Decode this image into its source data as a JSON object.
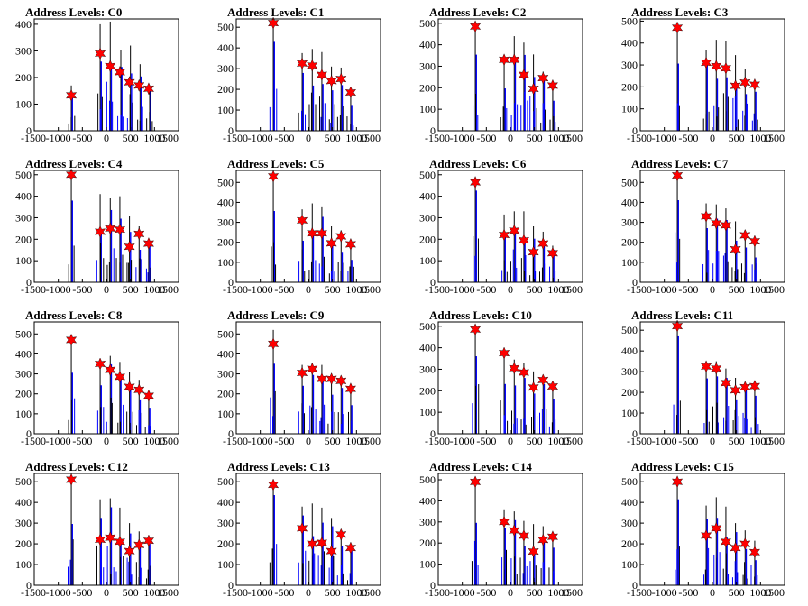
{
  "chart_data": {
    "type": "histogram",
    "layout": "4x4 grid",
    "colors": {
      "histogram_blue": "#0000ff",
      "histogram_black": "#000000",
      "marker_red": "#ff0000"
    },
    "xlim": [
      -1500,
      1500
    ],
    "xticks": [
      "-1500",
      "-1000",
      "-500",
      "0",
      "500",
      "1000",
      "1500"
    ],
    "panels": [
      {
        "title": "Address Levels: C0",
        "ylim": [
          0,
          420
        ],
        "yticks": [
          0,
          100,
          200,
          300,
          400
        ],
        "peaks_x": [
          -730,
          -130,
          80,
          300,
          500,
          700,
          900
        ],
        "peaks_y": [
          170,
          400,
          410,
          305,
          320,
          250,
          170
        ],
        "markers_x": [
          -730,
          -130,
          80,
          280,
          480,
          680,
          880
        ],
        "markers_y": [
          133,
          290,
          243,
          220,
          182,
          170,
          158
        ]
      },
      {
        "title": "Address Levels: C1",
        "ylim": [
          0,
          540
        ],
        "yticks": [
          0,
          100,
          200,
          300,
          400,
          500
        ],
        "peaks_x": [
          -730,
          -130,
          80,
          280,
          480,
          680,
          880
        ],
        "peaks_y": [
          530,
          375,
          395,
          380,
          310,
          305,
          205
        ],
        "markers_x": [
          -730,
          -130,
          80,
          280,
          480,
          680,
          880
        ],
        "markers_y": [
          520,
          325,
          315,
          270,
          240,
          250,
          185
        ]
      },
      {
        "title": "Address Levels: C2",
        "ylim": [
          0,
          520
        ],
        "yticks": [
          0,
          100,
          200,
          300,
          400,
          500
        ],
        "peaks_x": [
          -730,
          -130,
          80,
          280,
          480,
          680,
          880
        ],
        "peaks_y": [
          500,
          340,
          440,
          410,
          355,
          275,
          225
        ],
        "markers_x": [
          -730,
          -130,
          80,
          280,
          480,
          680,
          880
        ],
        "markers_y": [
          485,
          330,
          330,
          260,
          195,
          245,
          210
        ]
      },
      {
        "title": "Address Levels: C3",
        "ylim": [
          0,
          510
        ],
        "yticks": [
          0,
          100,
          200,
          300,
          400,
          500
        ],
        "peaks_x": [
          -730,
          -130,
          80,
          280,
          480,
          680,
          880
        ],
        "peaks_y": [
          485,
          370,
          415,
          410,
          345,
          280,
          215
        ],
        "markers_x": [
          -730,
          -130,
          80,
          280,
          480,
          680,
          880
        ],
        "markers_y": [
          470,
          310,
          295,
          285,
          205,
          220,
          210
        ]
      },
      {
        "title": "Address Levels: C4",
        "ylim": [
          0,
          520
        ],
        "yticks": [
          0,
          100,
          200,
          300,
          400,
          500
        ],
        "peaks_x": [
          -730,
          -130,
          80,
          280,
          480,
          680,
          880
        ],
        "peaks_y": [
          510,
          410,
          390,
          400,
          310,
          260,
          200
        ],
        "markers_x": [
          -730,
          -130,
          80,
          280,
          480,
          680,
          880
        ],
        "markers_y": [
          500,
          235,
          250,
          245,
          165,
          225,
          180
        ]
      },
      {
        "title": "Address Levels: C5",
        "ylim": [
          0,
          560
        ],
        "yticks": [
          0,
          100,
          200,
          300,
          400,
          500
        ],
        "peaks_x": [
          -730,
          -130,
          80,
          280,
          480,
          680,
          880
        ],
        "peaks_y": [
          545,
          365,
          395,
          380,
          280,
          260,
          200
        ],
        "markers_x": [
          -730,
          -130,
          80,
          280,
          480,
          680,
          880
        ],
        "markers_y": [
          530,
          310,
          245,
          245,
          195,
          230,
          190
        ]
      },
      {
        "title": "Address Levels: C6",
        "ylim": [
          0,
          520
        ],
        "yticks": [
          0,
          100,
          200,
          300,
          400,
          500
        ],
        "peaks_x": [
          -730,
          -130,
          80,
          280,
          480,
          680,
          880
        ],
        "peaks_y": [
          480,
          315,
          330,
          330,
          260,
          235,
          170
        ],
        "markers_x": [
          -730,
          -130,
          80,
          280,
          480,
          680,
          880
        ],
        "markers_y": [
          465,
          220,
          240,
          195,
          140,
          180,
          135
        ]
      },
      {
        "title": "Address Levels: C7",
        "ylim": [
          0,
          560
        ],
        "yticks": [
          0,
          100,
          200,
          300,
          400,
          500
        ],
        "peaks_x": [
          -730,
          -130,
          80,
          280,
          480,
          680,
          880
        ],
        "peaks_y": [
          545,
          395,
          390,
          370,
          305,
          260,
          215
        ],
        "markers_x": [
          -730,
          -130,
          80,
          280,
          480,
          680,
          880
        ],
        "markers_y": [
          535,
          330,
          295,
          285,
          165,
          235,
          205
        ]
      },
      {
        "title": "Address Levels: C8",
        "ylim": [
          0,
          560
        ],
        "yticks": [
          0,
          100,
          200,
          300,
          400,
          500
        ],
        "peaks_x": [
          -730,
          -130,
          80,
          280,
          480,
          680,
          880
        ],
        "peaks_y": [
          480,
          360,
          390,
          360,
          310,
          270,
          200
        ],
        "markers_x": [
          -730,
          -130,
          80,
          280,
          480,
          680,
          880
        ],
        "markers_y": [
          470,
          350,
          320,
          285,
          235,
          220,
          190
        ]
      },
      {
        "title": "Address Levels: C9",
        "ylim": [
          0,
          560
        ],
        "yticks": [
          0,
          100,
          200,
          300,
          400,
          500
        ],
        "peaks_x": [
          -730,
          -130,
          80,
          280,
          480,
          680,
          880
        ],
        "peaks_y": [
          520,
          345,
          355,
          345,
          300,
          270,
          245
        ],
        "markers_x": [
          -730,
          -130,
          80,
          280,
          480,
          680,
          880
        ],
        "markers_y": [
          450,
          305,
          325,
          275,
          275,
          265,
          225
        ]
      },
      {
        "title": "Address Levels: C10",
        "ylim": [
          0,
          520
        ],
        "yticks": [
          0,
          100,
          200,
          300,
          400,
          500
        ],
        "peaks_x": [
          -730,
          -130,
          80,
          280,
          480,
          680,
          880
        ],
        "peaks_y": [
          500,
          390,
          345,
          330,
          290,
          265,
          220
        ],
        "markers_x": [
          -730,
          -130,
          80,
          280,
          480,
          680,
          880
        ],
        "markers_y": [
          485,
          375,
          305,
          285,
          215,
          250,
          220
        ]
      },
      {
        "title": "Address Levels: C11",
        "ylim": [
          0,
          540
        ],
        "yticks": [
          0,
          100,
          200,
          300,
          400,
          500
        ],
        "peaks_x": [
          -730,
          -130,
          80,
          280,
          480,
          680,
          880
        ],
        "peaks_y": [
          530,
          345,
          350,
          315,
          270,
          250,
          235
        ],
        "markers_x": [
          -730,
          -130,
          80,
          280,
          480,
          680,
          880
        ],
        "markers_y": [
          520,
          325,
          315,
          245,
          210,
          225,
          230
        ]
      },
      {
        "title": "Address Levels: C12",
        "ylim": [
          0,
          540
        ],
        "yticks": [
          0,
          100,
          200,
          300,
          400,
          500
        ],
        "peaks_x": [
          -730,
          -130,
          80,
          280,
          480,
          680,
          880
        ],
        "peaks_y": [
          515,
          415,
          420,
          375,
          300,
          260,
          230
        ],
        "markers_x": [
          -730,
          -130,
          80,
          280,
          480,
          680,
          880
        ],
        "markers_y": [
          510,
          220,
          230,
          210,
          165,
          195,
          215
        ]
      },
      {
        "title": "Address Levels: C13",
        "ylim": [
          0,
          540
        ],
        "yticks": [
          0,
          100,
          200,
          300,
          400,
          500
        ],
        "peaks_x": [
          -730,
          -130,
          80,
          280,
          480,
          680,
          880
        ],
        "peaks_y": [
          495,
          380,
          395,
          375,
          325,
          265,
          195
        ],
        "markers_x": [
          -730,
          -130,
          80,
          280,
          480,
          680,
          880
        ],
        "markers_y": [
          485,
          275,
          200,
          205,
          165,
          245,
          180
        ]
      },
      {
        "title": "Address Levels: C14",
        "ylim": [
          0,
          530
        ],
        "yticks": [
          0,
          100,
          200,
          300,
          400,
          500
        ],
        "peaks_x": [
          -730,
          -130,
          80,
          280,
          480,
          680,
          880
        ],
        "peaks_y": [
          500,
          360,
          350,
          305,
          290,
          280,
          215
        ],
        "markers_x": [
          -730,
          -130,
          80,
          280,
          480,
          680,
          880
        ],
        "markers_y": [
          490,
          300,
          260,
          235,
          160,
          215,
          230
        ]
      },
      {
        "title": "Address Levels: C15",
        "ylim": [
          0,
          540
        ],
        "yticks": [
          0,
          100,
          200,
          300,
          400,
          500
        ],
        "peaks_x": [
          -730,
          -130,
          80,
          280,
          480,
          680,
          880
        ],
        "peaks_y": [
          505,
          385,
          425,
          380,
          300,
          265,
          215
        ],
        "markers_x": [
          -730,
          -130,
          80,
          280,
          480,
          680,
          880
        ],
        "markers_y": [
          500,
          240,
          275,
          210,
          180,
          200,
          160
        ]
      }
    ]
  }
}
